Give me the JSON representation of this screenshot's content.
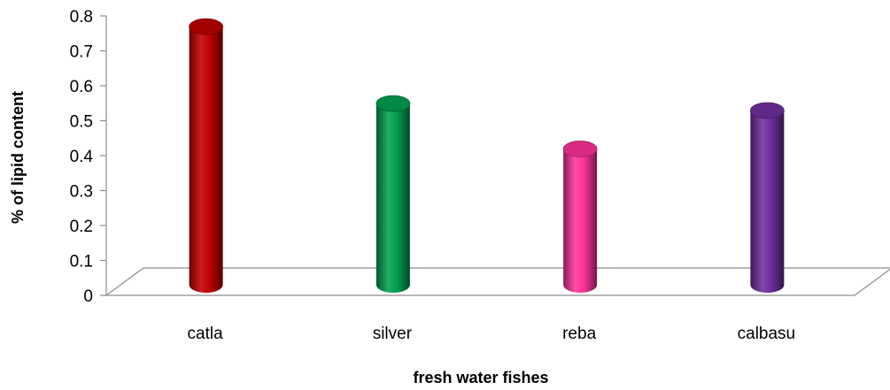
{
  "chart_data": {
    "type": "bar",
    "style": "3d-cylinder",
    "categories": [
      "catla",
      "silver",
      "reba",
      "calbasu"
    ],
    "values": [
      0.74,
      0.52,
      0.39,
      0.5
    ],
    "colors": [
      "#c00000",
      "#00a050",
      "#ff3399",
      "#7030a0"
    ],
    "title": "",
    "xlabel": "fresh water fishes",
    "ylabel": "% of lipid content",
    "ylim": [
      0,
      0.8
    ],
    "yticks": [
      "0",
      "0.1",
      "0.2",
      "0.3",
      "0.4",
      "0.5",
      "0.6",
      "0.7",
      "0.8"
    ],
    "grid": false,
    "legend": "none"
  }
}
